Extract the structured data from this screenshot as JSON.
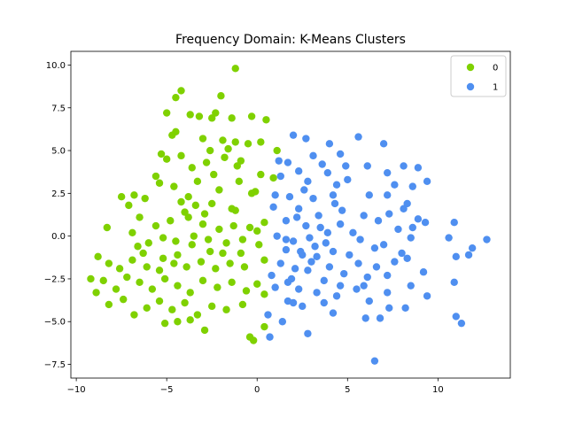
{
  "chart_data": {
    "type": "scatter",
    "title": "Frequency Domain: K-Means Clusters",
    "xlabel": "",
    "ylabel": "",
    "xlim": [
      -10.3,
      14.0
    ],
    "ylim": [
      -8.3,
      10.8
    ],
    "xticks": [
      -10,
      -5,
      0,
      5,
      10
    ],
    "xtick_labels": [
      "−10",
      "−5",
      "0",
      "5",
      "10"
    ],
    "yticks": [
      -7.5,
      -5.0,
      -2.5,
      0.0,
      2.5,
      5.0,
      7.5,
      10.0
    ],
    "ytick_labels": [
      "−7.5",
      "−5.0",
      "−2.5",
      "0.0",
      "2.5",
      "5.0",
      "7.5",
      "10.0"
    ],
    "grid": false,
    "legend": {
      "placement": "top-right",
      "entries": [
        "0",
        "1"
      ]
    },
    "series": [
      {
        "name": "0",
        "color": "#7fd100",
        "points": [
          [
            -1.2,
            9.8
          ],
          [
            -4.2,
            8.5
          ],
          [
            -4.5,
            8.1
          ],
          [
            -2.0,
            8.2
          ],
          [
            -5.0,
            7.2
          ],
          [
            -3.7,
            7.1
          ],
          [
            -3.2,
            7.0
          ],
          [
            -2.5,
            6.9
          ],
          [
            -2.3,
            7.2
          ],
          [
            -1.4,
            6.9
          ],
          [
            -0.3,
            7.0
          ],
          [
            0.5,
            6.8
          ],
          [
            -4.5,
            6.1
          ],
          [
            -3.0,
            5.7
          ],
          [
            -1.9,
            5.6
          ],
          [
            -1.6,
            5.1
          ],
          [
            -1.2,
            5.5
          ],
          [
            -0.5,
            5.4
          ],
          [
            0.2,
            5.5
          ],
          [
            1.1,
            5.0
          ],
          [
            -5.3,
            4.8
          ],
          [
            -5.0,
            4.5
          ],
          [
            -4.2,
            4.7
          ],
          [
            -2.8,
            4.3
          ],
          [
            -1.8,
            4.6
          ],
          [
            -0.9,
            4.4
          ],
          [
            -5.6,
            3.5
          ],
          [
            -5.4,
            3.1
          ],
          [
            -4.6,
            2.9
          ],
          [
            -3.3,
            3.2
          ],
          [
            -2.4,
            3.6
          ],
          [
            -1.0,
            3.2
          ],
          [
            0.2,
            3.6
          ],
          [
            0.9,
            3.4
          ],
          [
            -7.5,
            2.3
          ],
          [
            -6.8,
            2.4
          ],
          [
            -6.2,
            2.2
          ],
          [
            -4.2,
            2.0
          ],
          [
            -3.4,
            1.8
          ],
          [
            -2.5,
            1.9
          ],
          [
            -1.4,
            1.6
          ],
          [
            -0.3,
            2.5
          ],
          [
            -8.3,
            0.5
          ],
          [
            -7.1,
            1.8
          ],
          [
            -6.5,
            1.1
          ],
          [
            -5.6,
            0.6
          ],
          [
            -4.8,
            0.9
          ],
          [
            -3.8,
            1.1
          ],
          [
            -3.0,
            0.7
          ],
          [
            -2.1,
            0.4
          ],
          [
            -1.3,
            0.6
          ],
          [
            -0.4,
            0.5
          ],
          [
            0.4,
            0.8
          ],
          [
            -6.6,
            -0.6
          ],
          [
            -6.0,
            -0.4
          ],
          [
            -5.2,
            -0.1
          ],
          [
            -4.5,
            -0.3
          ],
          [
            -3.6,
            -0.5
          ],
          [
            -2.7,
            -0.2
          ],
          [
            -1.7,
            -0.4
          ],
          [
            -0.8,
            -0.2
          ],
          [
            0.1,
            -0.5
          ],
          [
            -8.8,
            -1.2
          ],
          [
            -8.2,
            -1.6
          ],
          [
            -7.6,
            -1.9
          ],
          [
            -6.9,
            -1.4
          ],
          [
            -6.1,
            -1.8
          ],
          [
            -5.4,
            -2.0
          ],
          [
            -4.6,
            -1.6
          ],
          [
            -3.9,
            -1.8
          ],
          [
            -3.1,
            -1.5
          ],
          [
            -2.3,
            -1.9
          ],
          [
            -1.5,
            -1.6
          ],
          [
            -0.7,
            -1.8
          ],
          [
            0.4,
            -1.4
          ],
          [
            -9.2,
            -2.5
          ],
          [
            -8.5,
            -2.6
          ],
          [
            -7.8,
            -3.1
          ],
          [
            -7.2,
            -2.4
          ],
          [
            -6.5,
            -2.7
          ],
          [
            -5.8,
            -3.1
          ],
          [
            -5.1,
            -2.5
          ],
          [
            -4.4,
            -2.9
          ],
          [
            -3.7,
            -3.3
          ],
          [
            -3.0,
            -2.6
          ],
          [
            -2.2,
            -3.0
          ],
          [
            -1.4,
            -2.7
          ],
          [
            -0.6,
            -3.2
          ],
          [
            0.0,
            -2.8
          ],
          [
            -8.9,
            -3.3
          ],
          [
            -8.2,
            -4.0
          ],
          [
            -7.4,
            -3.7
          ],
          [
            -6.8,
            -4.6
          ],
          [
            -6.1,
            -4.2
          ],
          [
            -5.4,
            -3.8
          ],
          [
            -4.7,
            -4.3
          ],
          [
            -4.0,
            -3.9
          ],
          [
            -3.3,
            -4.6
          ],
          [
            -2.5,
            -4.1
          ],
          [
            -1.7,
            -4.3
          ],
          [
            -0.8,
            -4.0
          ],
          [
            0.4,
            -3.4
          ],
          [
            -5.1,
            -5.1
          ],
          [
            -4.4,
            -5.0
          ],
          [
            -3.7,
            -4.9
          ],
          [
            -2.9,
            -5.5
          ],
          [
            0.4,
            -5.3
          ],
          [
            -0.4,
            -5.9
          ],
          [
            -0.2,
            -6.1
          ],
          [
            -6.9,
            0.2
          ],
          [
            -6.3,
            -1.0
          ],
          [
            -5.2,
            -1.3
          ],
          [
            -3.5,
            0.0
          ],
          [
            -2.6,
            -0.9
          ],
          [
            -1.9,
            -1.0
          ],
          [
            -0.9,
            -1.0
          ],
          [
            0.0,
            0.3
          ],
          [
            -4.0,
            1.4
          ],
          [
            -2.9,
            1.3
          ],
          [
            -1.2,
            1.5
          ],
          [
            -4.4,
            -1.1
          ],
          [
            -3.8,
            2.3
          ],
          [
            -2.1,
            2.7
          ],
          [
            -0.1,
            2.6
          ],
          [
            -3.6,
            4.0
          ],
          [
            -2.6,
            5.0
          ],
          [
            -1.1,
            4.1
          ],
          [
            -4.7,
            5.9
          ]
        ]
      },
      {
        "name": "1",
        "color": "#4f8ff0",
        "points": [
          [
            2.0,
            5.9
          ],
          [
            2.7,
            5.7
          ],
          [
            4.0,
            5.4
          ],
          [
            5.6,
            5.8
          ],
          [
            7.0,
            5.4
          ],
          [
            3.1,
            4.7
          ],
          [
            4.6,
            4.8
          ],
          [
            6.1,
            4.1
          ],
          [
            1.2,
            4.4
          ],
          [
            1.7,
            4.3
          ],
          [
            3.6,
            4.2
          ],
          [
            2.3,
            3.8
          ],
          [
            3.9,
            3.7
          ],
          [
            5.0,
            3.3
          ],
          [
            7.2,
            3.7
          ],
          [
            8.1,
            4.1
          ],
          [
            8.9,
            4.0
          ],
          [
            1.3,
            3.5
          ],
          [
            2.8,
            3.2
          ],
          [
            4.4,
            3.0
          ],
          [
            7.6,
            3.0
          ],
          [
            8.6,
            2.9
          ],
          [
            9.4,
            3.2
          ],
          [
            1.0,
            2.4
          ],
          [
            2.6,
            2.7
          ],
          [
            3.1,
            2.2
          ],
          [
            4.2,
            2.4
          ],
          [
            6.2,
            2.4
          ],
          [
            7.2,
            2.4
          ],
          [
            8.3,
            1.9
          ],
          [
            0.9,
            1.7
          ],
          [
            2.3,
            1.6
          ],
          [
            3.4,
            1.2
          ],
          [
            4.7,
            1.5
          ],
          [
            5.9,
            1.2
          ],
          [
            7.3,
            1.3
          ],
          [
            8.1,
            1.6
          ],
          [
            8.9,
            1.0
          ],
          [
            1.6,
            0.9
          ],
          [
            2.7,
            0.6
          ],
          [
            3.5,
            0.5
          ],
          [
            4.6,
            0.7
          ],
          [
            5.3,
            0.2
          ],
          [
            6.7,
            0.9
          ],
          [
            8.6,
            0.5
          ],
          [
            9.3,
            0.8
          ],
          [
            10.9,
            0.8
          ],
          [
            1.1,
            0.0
          ],
          [
            2.0,
            -0.3
          ],
          [
            2.9,
            -0.1
          ],
          [
            3.8,
            -0.4
          ],
          [
            5.7,
            -0.2
          ],
          [
            7.0,
            -0.5
          ],
          [
            8.5,
            -0.1
          ],
          [
            10.6,
            -0.1
          ],
          [
            12.7,
            -0.2
          ],
          [
            1.6,
            -0.8
          ],
          [
            2.5,
            -1.1
          ],
          [
            3.3,
            -1.2
          ],
          [
            4.2,
            -0.9
          ],
          [
            6.5,
            -0.7
          ],
          [
            8.0,
            -1.0
          ],
          [
            11.9,
            -0.7
          ],
          [
            1.3,
            -1.6
          ],
          [
            2.1,
            -1.9
          ],
          [
            3.0,
            -1.5
          ],
          [
            4.0,
            -1.8
          ],
          [
            5.6,
            -1.6
          ],
          [
            7.6,
            -1.5
          ],
          [
            8.3,
            -1.3
          ],
          [
            11.0,
            -1.2
          ],
          [
            11.7,
            -1.1
          ],
          [
            0.8,
            -2.3
          ],
          [
            1.9,
            -2.5
          ],
          [
            2.8,
            -2.0
          ],
          [
            3.7,
            -2.6
          ],
          [
            4.8,
            -2.2
          ],
          [
            6.1,
            -2.4
          ],
          [
            7.2,
            -2.3
          ],
          [
            9.2,
            -2.1
          ],
          [
            1.0,
            -3.0
          ],
          [
            2.3,
            -3.1
          ],
          [
            3.3,
            -3.3
          ],
          [
            4.6,
            -2.9
          ],
          [
            5.5,
            -3.1
          ],
          [
            7.2,
            -3.3
          ],
          [
            8.5,
            -2.9
          ],
          [
            9.4,
            -3.5
          ],
          [
            10.9,
            -2.7
          ],
          [
            1.7,
            -3.8
          ],
          [
            2.5,
            -4.1
          ],
          [
            3.7,
            -3.9
          ],
          [
            4.4,
            -3.5
          ],
          [
            6.2,
            -3.8
          ],
          [
            7.3,
            -4.2
          ],
          [
            8.2,
            -4.2
          ],
          [
            0.6,
            -4.6
          ],
          [
            2.0,
            -3.9
          ],
          [
            4.2,
            -4.5
          ],
          [
            6.0,
            -4.8
          ],
          [
            6.8,
            -4.8
          ],
          [
            11.0,
            -4.7
          ],
          [
            11.3,
            -5.1
          ],
          [
            1.4,
            -5.0
          ],
          [
            2.8,
            -5.7
          ],
          [
            0.7,
            -5.9
          ],
          [
            6.5,
            -7.3
          ],
          [
            1.6,
            -0.2
          ],
          [
            2.4,
            -0.9
          ],
          [
            3.9,
            0.2
          ],
          [
            5.1,
            -1.1
          ],
          [
            6.6,
            -1.8
          ],
          [
            1.8,
            2.3
          ],
          [
            4.9,
            4.1
          ],
          [
            3.2,
            -0.6
          ],
          [
            1.7,
            -2.7
          ],
          [
            4.3,
            1.9
          ],
          [
            7.8,
            0.4
          ],
          [
            2.2,
            1.1
          ],
          [
            5.9,
            -2.9
          ]
        ]
      }
    ]
  }
}
